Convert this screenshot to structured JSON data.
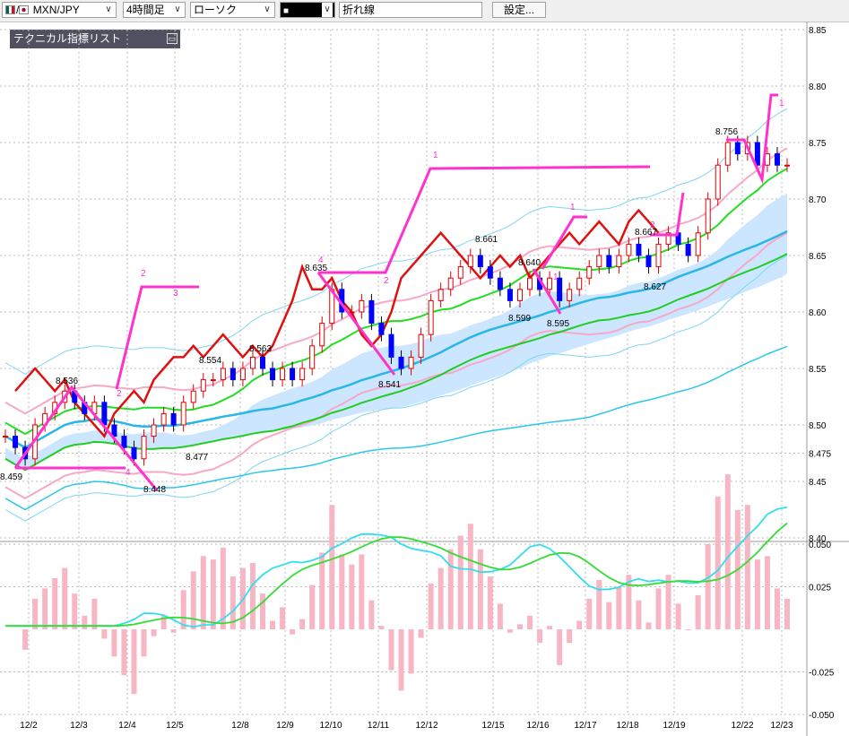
{
  "toolbar": {
    "pair": "MXN/JPY",
    "timeframe": "4時間足",
    "chart_style": "ローソク",
    "color_box": "■",
    "indicator": "折れ線",
    "settings": "設定..."
  },
  "indicator_panel": {
    "title": "テクニカル指標リスト"
  },
  "colors": {
    "up": "#e00000",
    "down": "#0000ff",
    "zigzag": "#ff33cc",
    "cloud": "#cce6ff"
  },
  "chart_data": [
    {
      "type": "candlestick",
      "ylim": [
        8.4,
        8.85
      ],
      "y_ticks": [
        "8.85",
        "8.80",
        "8.75",
        "8.70",
        "8.65",
        "8.60",
        "8.55",
        "8.50",
        "8.475",
        "8.45",
        "8.40"
      ],
      "x_ticks": [
        "12/2",
        "12/3",
        "12/4",
        "12/5",
        "12/8",
        "12/9",
        "12/10",
        "12/11",
        "12/12",
        "12/15",
        "12/16",
        "12/17",
        "12/18",
        "12/19",
        "12/22",
        "12/23"
      ],
      "annotations": [
        "8.459",
        "8.536",
        "8.448",
        "8.477",
        "8.554",
        "8.563",
        "8.635",
        "8.541",
        "8.661",
        "8.640",
        "8.599",
        "8.595",
        "8.667",
        "8.627",
        "8.756"
      ],
      "zigzag_labels": [
        "1",
        "2",
        "3",
        "4",
        "2",
        "1",
        "1",
        "2",
        "1",
        "2",
        "4"
      ],
      "close": [
        8.49,
        8.48,
        8.47,
        8.5,
        8.51,
        8.52,
        8.53,
        8.52,
        8.51,
        8.52,
        8.5,
        8.49,
        8.48,
        8.47,
        8.49,
        8.5,
        8.51,
        8.5,
        8.52,
        8.53,
        8.54,
        8.54,
        8.55,
        8.54,
        8.55,
        8.56,
        8.55,
        8.54,
        8.55,
        8.54,
        8.55,
        8.57,
        8.59,
        8.62,
        8.6,
        8.6,
        8.61,
        8.59,
        8.58,
        8.56,
        8.55,
        8.56,
        8.58,
        8.61,
        8.62,
        8.63,
        8.64,
        8.65,
        8.64,
        8.63,
        8.62,
        8.61,
        8.62,
        8.63,
        8.62,
        8.63,
        8.61,
        8.62,
        8.63,
        8.64,
        8.65,
        8.64,
        8.65,
        8.66,
        8.65,
        8.64,
        8.66,
        8.67,
        8.66,
        8.65,
        8.67,
        8.7,
        8.73,
        8.75,
        8.74,
        8.75,
        8.73,
        8.74,
        8.73,
        8.73
      ]
    },
    {
      "type": "macd",
      "ylim": [
        -0.05,
        0.05
      ],
      "y_ticks": [
        "0.050",
        "0.025",
        "-0.025",
        "-0.050"
      ]
    }
  ]
}
